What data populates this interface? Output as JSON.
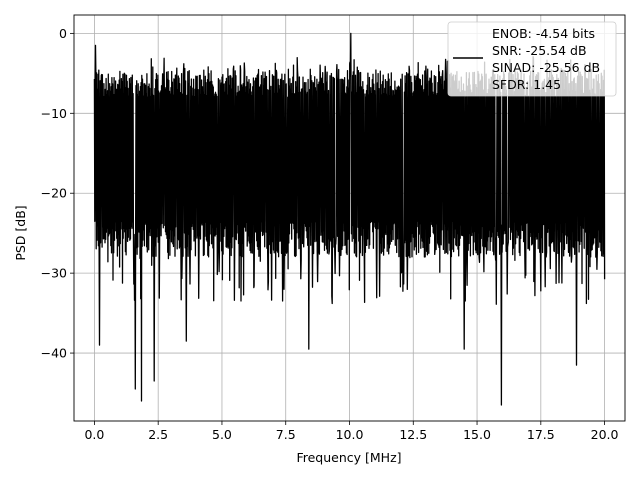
{
  "chart_data": {
    "type": "line",
    "xlabel": "Frequency [MHz]",
    "ylabel": "PSD [dB]",
    "xlim": [
      -0.8,
      20.8
    ],
    "ylim": [
      -48.5,
      2.3
    ],
    "xticks": [
      0.0,
      2.5,
      5.0,
      7.5,
      10.0,
      12.5,
      15.0,
      17.5,
      20.0
    ],
    "xtick_labels": [
      "0.0",
      "2.5",
      "5.0",
      "7.5",
      "10.0",
      "12.5",
      "15.0",
      "17.5",
      "20.0"
    ],
    "yticks": [
      0,
      -10,
      -20,
      -30,
      -40
    ],
    "ytick_labels": [
      "0",
      "−10",
      "−20",
      "−30",
      "−40"
    ],
    "grid": true,
    "legend_position": "top-right",
    "legend_entries": [
      "ENOB: -4.54 bits",
      "SNR: -25.54 dB",
      "SINAD: -25.56 dB",
      "SFDR: 1.45"
    ],
    "series": [
      {
        "color": "#000000",
        "x_range": [
          0.0,
          20.0
        ],
        "typical_band": [
          -26.0,
          -8.0
        ],
        "dips": [
          {
            "x": 0.2,
            "y": -39.0
          },
          {
            "x": 1.6,
            "y": -44.5
          },
          {
            "x": 1.85,
            "y": -46.0
          },
          {
            "x": 2.35,
            "y": -43.5
          },
          {
            "x": 3.6,
            "y": -38.5
          },
          {
            "x": 8.4,
            "y": -39.5
          },
          {
            "x": 14.5,
            "y": -39.5
          },
          {
            "x": 15.95,
            "y": -46.5
          },
          {
            "x": 18.9,
            "y": -41.5
          }
        ],
        "peaks": [
          {
            "x": 0.05,
            "y": -1.5
          },
          {
            "x": 3.5,
            "y": -3.8
          },
          {
            "x": 9.5,
            "y": -3.9
          },
          {
            "x": 10.05,
            "y": 0.0
          },
          {
            "x": 13.5,
            "y": -4.0
          },
          {
            "x": 17.2,
            "y": -2.9
          }
        ]
      }
    ]
  }
}
